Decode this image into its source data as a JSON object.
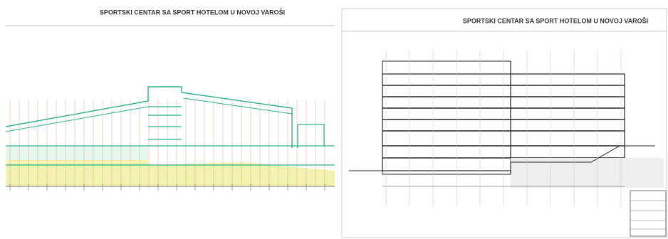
{
  "panels": [
    {
      "title": "SPORTSKI CENTAR SA SPORT HOTELOM U NOVOJ VAROŠI"
    },
    {
      "title": "SPORTSKI CENTAR SA SPORT HOTELOM U NOVOJ VAROŠI"
    }
  ]
}
